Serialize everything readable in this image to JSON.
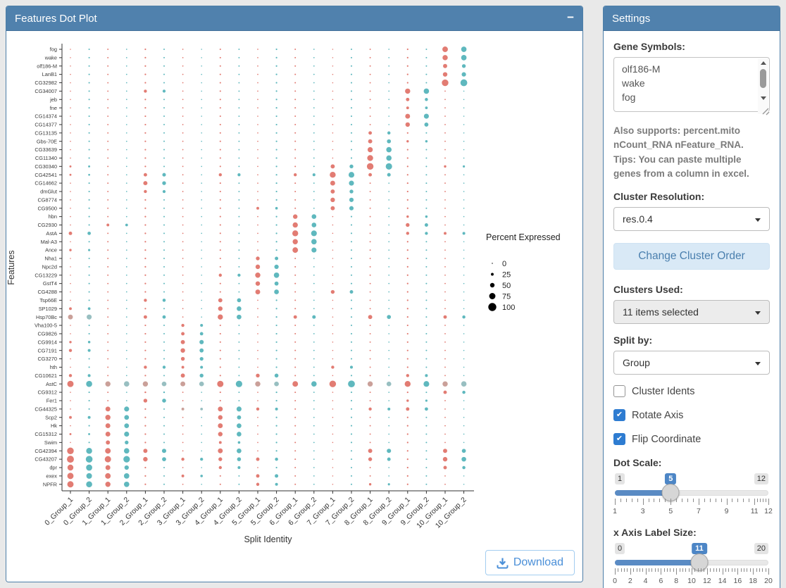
{
  "plot_panel": {
    "title": "Features Dot Plot",
    "collapse_icon": "minus-icon",
    "collapse_glyph": "−",
    "download_label": "Download",
    "download_icon": "download-icon"
  },
  "chart_data": {
    "type": "dotplot",
    "xlabel": "Split Identity",
    "ylabel": "Features",
    "legend_title": "Percent Expressed",
    "legend_sizes": [
      0,
      25,
      50,
      75,
      100
    ],
    "legend_dot_color": "#000000",
    "x_categories": [
      "0_Group_1",
      "0_Group_2",
      "1_Group_1",
      "1_Group_2",
      "2_Group_1",
      "2_Group_2",
      "3_Group_1",
      "3_Group_2",
      "4_Group_1",
      "4_Group_2",
      "5_Group_1",
      "5_Group_2",
      "6_Group_1",
      "6_Group_2",
      "7_Group_1",
      "7_Group_2",
      "8_Group_1",
      "8_Group_2",
      "9_Group_1",
      "9_Group_2",
      "10_Group_1",
      "10_Group_2"
    ],
    "clusters": [
      "0",
      "1",
      "2",
      "3",
      "4",
      "5",
      "6",
      "7",
      "8",
      "9",
      "10"
    ],
    "group_colors": {
      "Group_1": "#E0756B",
      "Group_2": "#56B4BA"
    },
    "muted_colors": {
      "Group_1": "#C79B93",
      "Group_2": "#92BCBE"
    },
    "baseline_pct": 4,
    "genes": [
      {
        "name": "fog",
        "peaks": {
          "10": 65
        },
        "muted": []
      },
      {
        "name": "wake",
        "peaks": {
          "10": 60
        },
        "muted": []
      },
      {
        "name": "olf186-M",
        "peaks": {
          "10": 45
        },
        "muted": []
      },
      {
        "name": "LanB1",
        "peaks": {
          "10": 50
        },
        "muted": []
      },
      {
        "name": "CG32982",
        "peaks": {
          "10": 80
        },
        "muted": []
      },
      {
        "name": "CG34007",
        "peaks": {
          "9": 60,
          "2": 30
        },
        "muted": []
      },
      {
        "name": "jeb",
        "peaks": {
          "9": 35
        },
        "muted": []
      },
      {
        "name": "fne",
        "peaks": {
          "9": 25
        },
        "muted": []
      },
      {
        "name": "CG14374",
        "peaks": {
          "9": 55
        },
        "muted": []
      },
      {
        "name": "CG14377",
        "peaks": {
          "9": 50
        },
        "muted": []
      },
      {
        "name": "CG13135",
        "peaks": {
          "8": 35
        },
        "muted": []
      },
      {
        "name": "Gbs-70E",
        "peaks": {
          "8": 45,
          "9": 20
        },
        "muted": []
      },
      {
        "name": "CG33639",
        "peaks": {
          "8": 60
        },
        "muted": []
      },
      {
        "name": "CG11340",
        "peaks": {
          "8": 70
        },
        "muted": []
      },
      {
        "name": "CG30340",
        "peaks": {
          "8": 80,
          "7": 45,
          "0": 15,
          "10": 20
        },
        "muted": []
      },
      {
        "name": "CG42541",
        "peaks": {
          "7": 70,
          "2": 35,
          "4": 30,
          "6": 30,
          "8": 35,
          "0": 15
        },
        "muted": []
      },
      {
        "name": "CG14662",
        "peaks": {
          "7": 55,
          "2": 45
        },
        "muted": []
      },
      {
        "name": "dmGlut",
        "peaks": {
          "7": 45,
          "2": 30
        },
        "muted": []
      },
      {
        "name": "CG8774",
        "peaks": {
          "7": 50
        },
        "muted": []
      },
      {
        "name": "CG9500",
        "peaks": {
          "7": 45,
          "5": 25
        },
        "muted": []
      },
      {
        "name": "hbn",
        "peaks": {
          "6": 50,
          "9": 20
        },
        "muted": []
      },
      {
        "name": "CG2930",
        "peaks": {
          "6": 60,
          "1": 25,
          "9": 40
        },
        "muted": []
      },
      {
        "name": "AstA",
        "peaks": {
          "6": 70,
          "0": 35,
          "9": 30,
          "10": 25
        },
        "muted": []
      },
      {
        "name": "Mal-A3",
        "peaks": {
          "6": 60
        },
        "muted": []
      },
      {
        "name": "Ance",
        "peaks": {
          "6": 65,
          "0": 20
        },
        "muted": []
      },
      {
        "name": "Nha1",
        "peaks": {
          "5": 40
        },
        "muted": []
      },
      {
        "name": "Npc2d",
        "peaks": {
          "5": 50
        },
        "muted": []
      },
      {
        "name": "CG13229",
        "peaks": {
          "5": 60,
          "4": 30
        },
        "muted": []
      },
      {
        "name": "GstT4",
        "peaks": {
          "5": 50
        },
        "muted": []
      },
      {
        "name": "CG4288",
        "peaks": {
          "5": 55,
          "7": 40
        },
        "muted": []
      },
      {
        "name": "Tsp66E",
        "peaks": {
          "4": 45,
          "2": 30
        },
        "muted": []
      },
      {
        "name": "SP1029",
        "peaks": {
          "4": 50,
          "0": 25
        },
        "muted": []
      },
      {
        "name": "Hsp70Bc",
        "peaks": {
          "4": 60,
          "0": 55,
          "2": 35,
          "6": 35,
          "8": 45,
          "10": 35
        },
        "muted": [
          0
        ]
      },
      {
        "name": "Vha100-5",
        "peaks": {
          "3": 30
        },
        "muted": []
      },
      {
        "name": "CG9826",
        "peaks": {
          "3": 35
        },
        "muted": []
      },
      {
        "name": "CG9914",
        "peaks": {
          "3": 45,
          "0": 20
        },
        "muted": []
      },
      {
        "name": "CG7191",
        "peaks": {
          "3": 50,
          "0": 30
        },
        "muted": []
      },
      {
        "name": "CG3270",
        "peaks": {
          "3": 40
        },
        "muted": []
      },
      {
        "name": "hth",
        "peaks": {
          "3": 25,
          "2": 30,
          "7": 30
        },
        "muted": []
      },
      {
        "name": "CG10621",
        "peaks": {
          "3": 45,
          "0": 30,
          "5": 40,
          "9": 30
        },
        "muted": []
      },
      {
        "name": "AstC",
        "peaks": {
          "0": 75,
          "1": 60,
          "2": 60,
          "3": 55,
          "4": 75,
          "5": 60,
          "6": 65,
          "7": 80,
          "8": 60,
          "9": 70,
          "10": 60
        },
        "muted": [
          1,
          2,
          3,
          5,
          8,
          10
        ]
      },
      {
        "name": "CG9312",
        "peaks": {
          "10": 35,
          "2": 10
        },
        "muted": []
      },
      {
        "name": "Fer1",
        "peaks": {
          "2": 40,
          "9": 20
        },
        "muted": []
      },
      {
        "name": "CG44325",
        "peaks": {
          "1": 55,
          "3": 25,
          "4": 55,
          "5": 30,
          "8": 30,
          "9": 35
        },
        "muted": [
          3
        ]
      },
      {
        "name": "Scp2",
        "peaks": {
          "0": 25,
          "1": 60,
          "4": 50
        },
        "muted": []
      },
      {
        "name": "Hk",
        "peaks": {
          "1": 55,
          "4": 55
        },
        "muted": []
      },
      {
        "name": "CG15312",
        "peaks": {
          "0": 15,
          "1": 55,
          "4": 50
        },
        "muted": []
      },
      {
        "name": "Swim",
        "peaks": {
          "1": 45,
          "4": 25
        },
        "muted": []
      },
      {
        "name": "CG42394",
        "peaks": {
          "0": 80,
          "1": 65,
          "2": 45,
          "4": 55,
          "8": 45,
          "10": 45
        },
        "muted": []
      },
      {
        "name": "CG43207",
        "peaks": {
          "0": 85,
          "1": 75,
          "2": 50,
          "3": 30,
          "4": 40,
          "5": 35,
          "8": 40,
          "10": 50
        },
        "muted": []
      },
      {
        "name": "dpr",
        "peaks": {
          "0": 70,
          "1": 55,
          "4": 30,
          "10": 35
        },
        "muted": []
      },
      {
        "name": "exex",
        "peaks": {
          "0": 75,
          "1": 65,
          "3": 25,
          "5": 35
        },
        "muted": []
      },
      {
        "name": "NPFR",
        "peaks": {
          "0": 75,
          "1": 60,
          "5": 30,
          "8": 20
        },
        "muted": []
      }
    ]
  },
  "settings": {
    "title": "Settings",
    "gene_symbols_label": "Gene Symbols:",
    "gene_symbols_value": "olf186-M\nwake\nfog",
    "help_line1": "Also supports: percent.mito nCount_RNA nFeature_RNA.",
    "help_line2": "Tips: You can paste multiple genes from a column in excel.",
    "cluster_resolution_label": "Cluster Resolution:",
    "cluster_resolution_value": "res.0.4",
    "change_cluster_order_label": "Change Cluster Order",
    "clusters_used_label": "Clusters Used:",
    "clusters_used_value": "11 items selected",
    "split_by_label": "Split by:",
    "split_by_value": "Group",
    "checkbox_cluster_idents": {
      "label": "Cluster Idents",
      "checked": false
    },
    "checkbox_rotate_axis": {
      "label": "Rotate Axis",
      "checked": true
    },
    "checkbox_flip_coordinate": {
      "label": "Flip Coordinate",
      "checked": true
    },
    "dot_scale": {
      "label": "Dot Scale:",
      "min": 1,
      "max": 12,
      "value": 5,
      "grid": [
        1,
        3,
        5,
        7,
        9,
        11,
        12
      ]
    },
    "x_axis_label_size": {
      "label": "x Axis Label Size:",
      "min": 0,
      "max": 20,
      "value": 11,
      "grid": [
        0,
        2,
        4,
        6,
        8,
        10,
        12,
        14,
        16,
        18,
        20
      ]
    },
    "icons": [
      "caret-down-icon",
      "check-icon",
      "scroll-up-icon",
      "scroll-down-icon",
      "resize-grip-icon"
    ]
  }
}
